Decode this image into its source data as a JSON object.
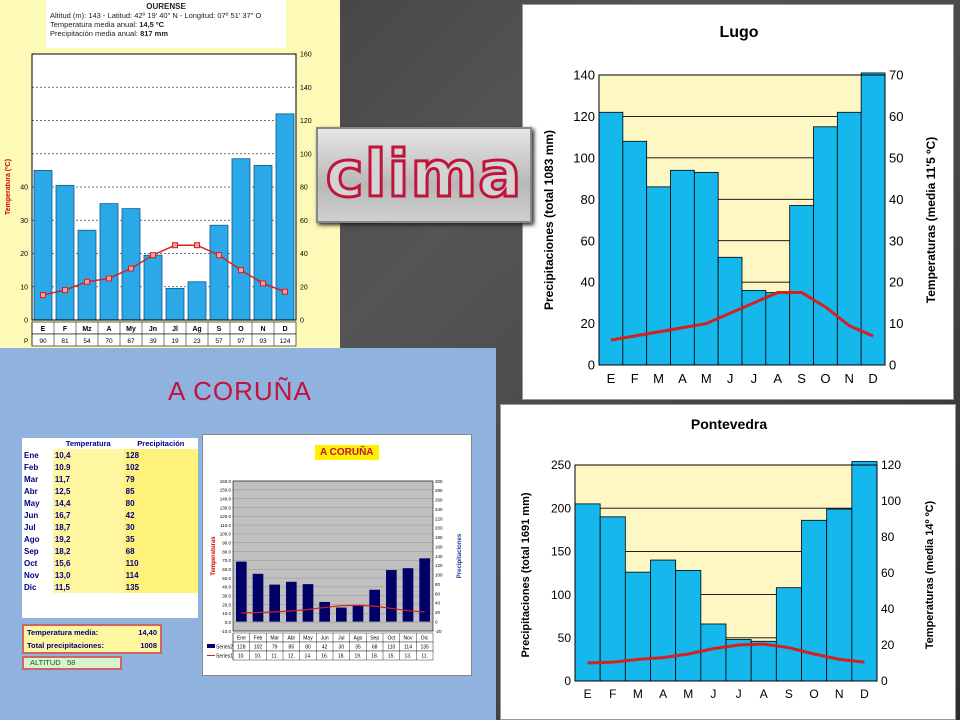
{
  "months": [
    "E",
    "F",
    "M",
    "A",
    "M",
    "J",
    "J",
    "A",
    "S",
    "O",
    "N",
    "D"
  ],
  "ourense": {
    "title": "OURENSE",
    "line1": "Altitud (m): 143 - Latitud: 42º 19' 40\" N - Longitud: 07º 51' 37\" O",
    "line2_label": "Temperatura media anual:",
    "line2_value": "14,5 ºC",
    "line3_label": "Precipitación media anual:",
    "line3_value": "817 mm",
    "ylabel": "Temperatura (ºC)",
    "month_labels": [
      "E",
      "F",
      "Mz",
      "A",
      "My",
      "Jn",
      "Jl",
      "Ag",
      "S",
      "O",
      "N",
      "D"
    ],
    "row_label": "P"
  },
  "clima_label": "clima",
  "coruna": {
    "title": "A CORUÑA",
    "table_head_temp": "Temperatura",
    "table_head_prec": "Precipitación",
    "rows": [
      {
        "m": "Ene",
        "t": "10,4",
        "p": "128"
      },
      {
        "m": "Feb",
        "t": "10.9",
        "p": "102"
      },
      {
        "m": "Mar",
        "t": "11,7",
        "p": "79"
      },
      {
        "m": "Abr",
        "t": "12,5",
        "p": "85"
      },
      {
        "m": "May",
        "t": "14,4",
        "p": "80"
      },
      {
        "m": "Jun",
        "t": "16,7",
        "p": "42"
      },
      {
        "m": "Jul",
        "t": "18,7",
        "p": "30"
      },
      {
        "m": "Ago",
        "t": "19,2",
        "p": "35"
      },
      {
        "m": "Sep",
        "t": "18,2",
        "p": "68"
      },
      {
        "m": "Oct",
        "t": "15,6",
        "p": "110"
      },
      {
        "m": "Nov",
        "t": "13,0",
        "p": "114"
      },
      {
        "m": "Dic",
        "t": "11,5",
        "p": "135"
      }
    ],
    "temp_media_label": "Temperatura media:",
    "temp_media_value": "14,40",
    "total_prec_label": "Total precipitaciones:",
    "total_prec_value": "1008",
    "altitud_label": "ALTITUD",
    "altitud_value": "58",
    "chart_label": "A CORUÑA",
    "chart_ylabel_left": "Temperaturas",
    "chart_ylabel_right": "Precipitaciones",
    "chart_months": [
      "Ene",
      "Feb",
      "Mar",
      "Abr",
      "May",
      "Jun",
      "Jul",
      "Ago",
      "Sep",
      "Oct",
      "Nov",
      "Dic"
    ],
    "series2_name": "Series2",
    "series1_name": "Series1",
    "series1_short": [
      "10.",
      "10.",
      "11.",
      "12.",
      "14.",
      "16.",
      "18.",
      "19.",
      "18.",
      "15.",
      "13.",
      "11."
    ]
  },
  "lugo": {
    "title": "Lugo",
    "ylabel_left": "Precipitaciones (total 1083 mm)",
    "ylabel_right": "Temperaturas (media 11'5 ºC)"
  },
  "pontevedra": {
    "title": "Pontevedra",
    "ylabel_left": "Precipitaciones (total 1691 mm)",
    "ylabel_right": "Temperaturas (media 14º ºC)"
  },
  "colors": {
    "bar": "#1ab4ea",
    "line": "#d42020",
    "coruna_bar": "#000066",
    "plot_bg": "#fdf7c4"
  },
  "chart_data": [
    {
      "type": "bar",
      "title": "OURENSE",
      "categories": [
        "E",
        "F",
        "Mz",
        "A",
        "My",
        "Jn",
        "Jl",
        "Ag",
        "S",
        "O",
        "N",
        "D"
      ],
      "series": [
        {
          "name": "P",
          "values": [
            90,
            81,
            54,
            70,
            67,
            39,
            19,
            23,
            57,
            97,
            93,
            124
          ]
        },
        {
          "values": [
            7.5,
            9,
            11.5,
            12.5,
            15.5,
            19.5,
            22.5,
            22.5,
            19.5,
            15,
            11,
            8.5
          ]
        }
      ],
      "ylabel": "Temperatura (ºC)",
      "ylim": [
        0,
        80
      ],
      "y2lim": [
        0,
        160
      ],
      "grid": true
    },
    {
      "type": "bar",
      "title": "Lugo",
      "categories": [
        "E",
        "F",
        "M",
        "A",
        "M",
        "J",
        "J",
        "A",
        "S",
        "O",
        "N",
        "D"
      ],
      "series": [
        {
          "values": [
            122,
            108,
            86,
            94,
            93,
            52,
            36,
            35,
            77,
            115,
            122,
            141
          ]
        },
        {
          "values": [
            6,
            7,
            8,
            9,
            10,
            12.5,
            15,
            17.5,
            17.5,
            14,
            9.5,
            7
          ]
        }
      ],
      "ylabel": "Precipitaciones (total 1083 mm)",
      "y2label": "Temperaturas (media 11'5 ºC)",
      "ylim": [
        0,
        140
      ],
      "y2lim": [
        0,
        70
      ],
      "grid": true
    },
    {
      "type": "bar",
      "title": "A CORUÑA",
      "categories": [
        "Ene",
        "Feb",
        "Mar",
        "Abr",
        "May",
        "Jun",
        "Jul",
        "Ago",
        "Sep",
        "Oct",
        "Nov",
        "Dic"
      ],
      "series": [
        {
          "name": "Series2",
          "values": [
            128,
            102,
            79,
            85,
            80,
            42,
            30,
            35,
            68,
            110,
            114,
            135
          ]
        },
        {
          "name": "Series1",
          "values": [
            10.4,
            10.9,
            11.7,
            12.5,
            14.4,
            16.7,
            18.7,
            19.2,
            18.2,
            15.6,
            13.0,
            11.5
          ]
        }
      ],
      "ylabel": "Temperaturas",
      "y2label": "Precipitaciones",
      "ylim": [
        -10,
        160
      ],
      "y2lim": [
        -20,
        300
      ],
      "grid": true
    },
    {
      "type": "bar",
      "title": "Pontevedra",
      "categories": [
        "E",
        "F",
        "M",
        "A",
        "M",
        "J",
        "J",
        "A",
        "S",
        "O",
        "N",
        "D"
      ],
      "series": [
        {
          "values": [
            205,
            190,
            126,
            140,
            128,
            66,
            48,
            46,
            108,
            186,
            199,
            254
          ]
        },
        {
          "values": [
            10,
            10.5,
            12,
            13,
            15,
            18,
            20,
            20.5,
            18.5,
            15,
            12,
            10.5
          ]
        }
      ],
      "ylabel": "Precipitaciones (total 1691 mm)",
      "y2label": "Temperaturas (media 14º ºC)",
      "ylim": [
        0,
        250
      ],
      "y2lim": [
        0,
        120
      ],
      "grid": true
    }
  ]
}
